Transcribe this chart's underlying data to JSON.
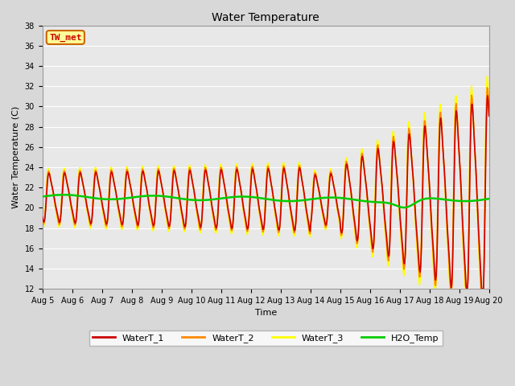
{
  "title": "Water Temperature",
  "xlabel": "Time",
  "ylabel": "Water Temperature (C)",
  "ylim": [
    12,
    38
  ],
  "yticks": [
    12,
    14,
    16,
    18,
    20,
    22,
    24,
    26,
    28,
    30,
    32,
    34,
    36,
    38
  ],
  "xlim": [
    0,
    15
  ],
  "xtick_labels": [
    "Aug 5",
    "Aug 6",
    "Aug 7",
    "Aug 8",
    "Aug 9",
    "Aug 10",
    "Aug 11",
    "Aug 12",
    "Aug 13",
    "Aug 14",
    "Aug 15",
    "Aug 16",
    "Aug 17",
    "Aug 18",
    "Aug 19",
    "Aug 20"
  ],
  "bg_color": "#e8e8e8",
  "grid_color": "#ffffff",
  "annotation_text": "TW_met",
  "annotation_color": "#cc0000",
  "annotation_bg": "#ffff99",
  "annotation_border": "#cc6600",
  "line_colors": {
    "WaterT_1": "#cc0000",
    "WaterT_2": "#ff8800",
    "WaterT_3": "#ffff00",
    "H2O_Temp": "#00cc00"
  },
  "line_widths": {
    "WaterT_1": 1.2,
    "WaterT_2": 1.2,
    "WaterT_3": 1.2,
    "H2O_Temp": 1.8
  }
}
